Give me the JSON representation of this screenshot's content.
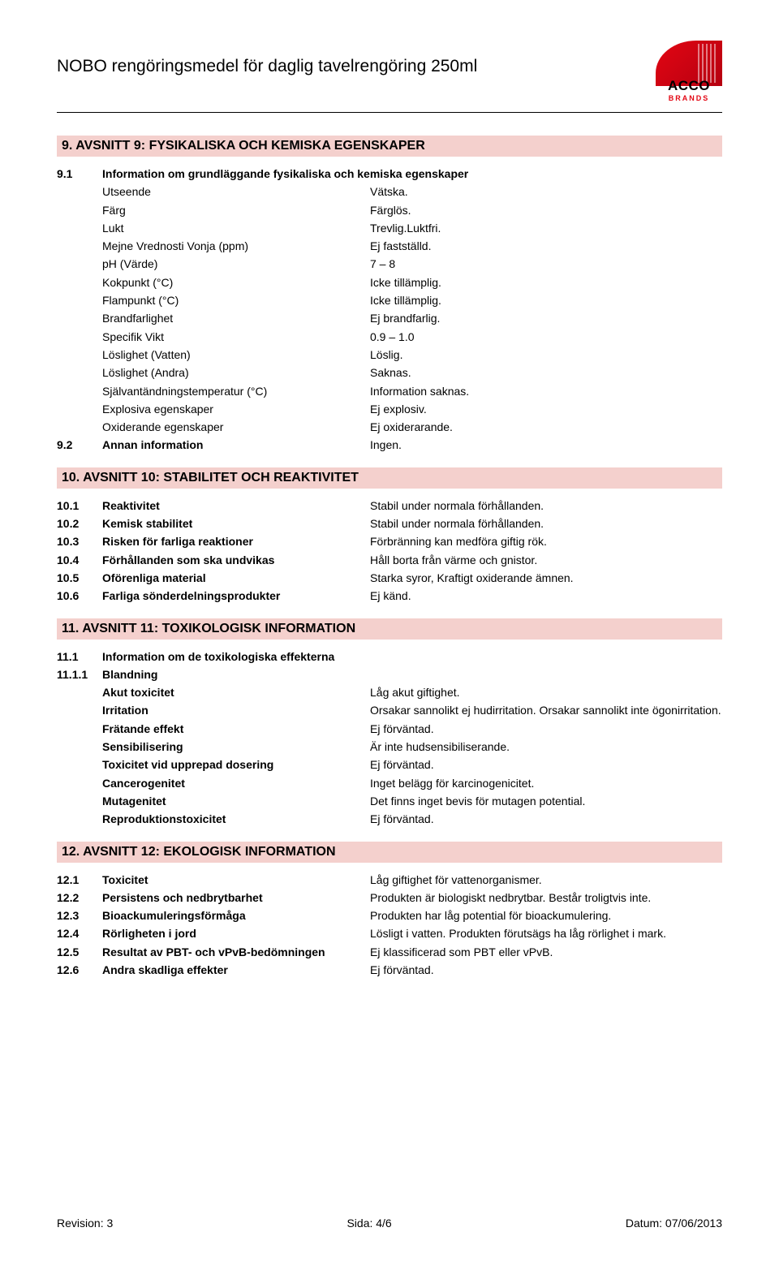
{
  "header": {
    "title": "NOBO rengöringsmedel för daglig tavelrengöring 250ml",
    "logo": {
      "main": "ACCO",
      "sub": "BRANDS"
    }
  },
  "sections": {
    "s9": {
      "heading": "9.  AVSNITT 9: FYSIKALISKA OCH KEMISKA EGENSKAPER",
      "sub91": {
        "num": "9.1",
        "label": "Information om grundläggande fysikaliska och kemiska egenskaper"
      },
      "rows": [
        {
          "label": "Utseende",
          "value": "Vätska."
        },
        {
          "label": "Färg",
          "value": "Färglös."
        },
        {
          "label": "Lukt",
          "value": "Trevlig.Luktfri."
        },
        {
          "label": "Mejne Vrednosti Vonja  (ppm)",
          "value": "Ej fastställd."
        },
        {
          "label": "pH (Värde)",
          "value": "7 – 8"
        },
        {
          "label": "Kokpunkt (°C)",
          "value": "Icke tillämplig."
        },
        {
          "label": "Flampunkt (°C)",
          "value": "Icke tillämplig."
        },
        {
          "label": "Brandfarlighet",
          "value": "Ej brandfarlig."
        },
        {
          "label": "Specifik Vikt",
          "value": "0.9 – 1.0"
        },
        {
          "label": "Löslighet (Vatten)",
          "value": "Löslig."
        },
        {
          "label": "Löslighet (Andra)",
          "value": "Saknas."
        },
        {
          "label": "Självantändningstemperatur (°C)",
          "value": "Information saknas."
        },
        {
          "label": "Explosiva egenskaper",
          "value": "Ej explosiv."
        },
        {
          "label": "Oxiderande egenskaper",
          "value": "Ej oxiderarande."
        }
      ],
      "sub92": {
        "num": "9.2",
        "label": "Annan information",
        "value": "Ingen."
      }
    },
    "s10": {
      "heading": "10.  AVSNITT 10: STABILITET OCH REAKTIVITET",
      "rows": [
        {
          "num": "10.1",
          "label": "Reaktivitet",
          "value": "Stabil under normala förhållanden."
        },
        {
          "num": "10.2",
          "label": "Kemisk stabilitet",
          "value": "Stabil under normala förhållanden."
        },
        {
          "num": "10.3",
          "label": "Risken för farliga reaktioner",
          "value": "Förbränning kan medföra giftig rök."
        },
        {
          "num": "10.4",
          "label": "Förhållanden som ska undvikas",
          "value": "Håll borta från värme och gnistor."
        },
        {
          "num": "10.5",
          "label": "Oförenliga material",
          "value": "Starka syror, Kraftigt oxiderande ämnen."
        },
        {
          "num": "10.6",
          "label": "Farliga sönderdelningsprodukter",
          "value": "Ej känd."
        }
      ]
    },
    "s11": {
      "heading": "11.  AVSNITT 11: TOXIKOLOGISK INFORMATION",
      "sub111": {
        "num": "11.1",
        "label": "Information om de toxikologiska effekterna"
      },
      "sub1111": {
        "num": "11.1.1",
        "label": "Blandning"
      },
      "rows": [
        {
          "label": "Akut toxicitet",
          "value": "Låg akut giftighet."
        },
        {
          "label": "Irritation",
          "value": "Orsakar sannolikt ej hudirritation. Orsakar sannolikt inte ögonirritation."
        },
        {
          "label": "Frätande effekt",
          "value": "Ej förväntad."
        },
        {
          "label": "Sensibilisering",
          "value": "Är inte hudsensibiliserande."
        },
        {
          "label": "Toxicitet vid upprepad dosering",
          "value": "Ej förväntad."
        },
        {
          "label": "Cancerogenitet",
          "value": "Inget belägg för karcinogenicitet."
        },
        {
          "label": "Mutagenitet",
          "value": "Det finns inget bevis för mutagen potential."
        },
        {
          "label": "Reproduktionstoxicitet",
          "value": "Ej förväntad."
        }
      ]
    },
    "s12": {
      "heading": "12.  AVSNITT 12: EKOLOGISK INFORMATION",
      "rows": [
        {
          "num": "12.1",
          "label": "Toxicitet",
          "value": "Låg giftighet för vattenorganismer."
        },
        {
          "num": "12.2",
          "label": "Persistens och nedbrytbarhet",
          "value": "Produkten är biologiskt nedbrytbar. Består troligtvis inte."
        },
        {
          "num": "12.3",
          "label": "Bioackumuleringsförmåga",
          "value": "Produkten har låg potential för bioackumulering."
        },
        {
          "num": "12.4",
          "label": "Rörligheten i jord",
          "value": "Lösligt i vatten. Produkten förutsägs ha låg rörlighet i mark."
        },
        {
          "num": "12.5",
          "label": "Resultat av PBT- och vPvB-bedömningen",
          "value": "Ej klassificerad som PBT eller vPvB."
        },
        {
          "num": "12.6",
          "label": "Andra skadliga effekter",
          "value": "Ej förväntad."
        }
      ]
    }
  },
  "footer": {
    "left": "Revision: 3",
    "center": "Sida: 4/6",
    "right": "Datum: 07/06/2013"
  }
}
